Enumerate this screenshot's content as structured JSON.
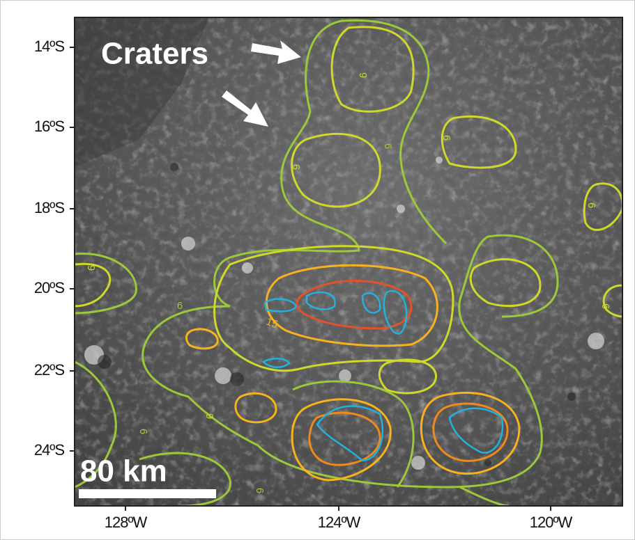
{
  "map": {
    "annotation": "Craters",
    "scale_bar": "80 km",
    "latitude_labels": [
      "14ºS",
      "16ºS",
      "18ºS",
      "20ºS",
      "22ºS",
      "24ºS"
    ],
    "longitude_labels": [
      "128ºW",
      "124ºW",
      "120ºW"
    ],
    "contour_labels": [
      "9",
      "6",
      "9",
      "6",
      "6",
      "9",
      "6",
      "15",
      "6",
      "9",
      "6",
      "6"
    ]
  }
}
